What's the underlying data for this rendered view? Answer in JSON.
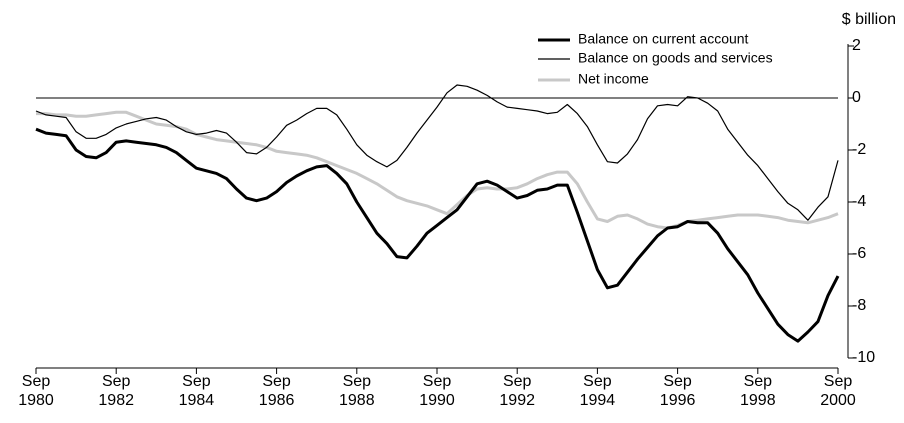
{
  "chart_data": {
    "type": "line",
    "y_axis_label": "$ billion",
    "categories": [
      "Sep 1980",
      null,
      null,
      null,
      null,
      null,
      null,
      null,
      "Sep 1982",
      null,
      null,
      null,
      null,
      null,
      null,
      null,
      "Sep 1984",
      null,
      null,
      null,
      null,
      null,
      null,
      null,
      "Sep 1986",
      null,
      null,
      null,
      null,
      null,
      null,
      null,
      "Sep 1988",
      null,
      null,
      null,
      null,
      null,
      null,
      null,
      "Sep 1990",
      null,
      null,
      null,
      null,
      null,
      null,
      null,
      "Sep 1992",
      null,
      null,
      null,
      null,
      null,
      null,
      null,
      "Sep 1994",
      null,
      null,
      null,
      null,
      null,
      null,
      null,
      "Sep 1996",
      null,
      null,
      null,
      null,
      null,
      null,
      null,
      "Sep 1998",
      null,
      null,
      null,
      null,
      null,
      null,
      null,
      "Sep 2000"
    ],
    "series": [
      {
        "name": "Balance on current account",
        "color": "#000000",
        "line_width": 3,
        "values": [
          -1.2,
          -1.35,
          -1.4,
          -1.45,
          -2.0,
          -2.25,
          -2.3,
          -2.1,
          -1.7,
          -1.65,
          -1.7,
          -1.75,
          -1.8,
          -1.9,
          -2.1,
          -2.4,
          -2.7,
          -2.8,
          -2.9,
          -3.1,
          -3.5,
          -3.85,
          -3.95,
          -3.85,
          -3.6,
          -3.25,
          -3.0,
          -2.8,
          -2.65,
          -2.6,
          -2.9,
          -3.3,
          -4.0,
          -4.6,
          -5.2,
          -5.6,
          -6.1,
          -6.15,
          -5.7,
          -5.2,
          -4.9,
          -4.6,
          -4.3,
          -3.8,
          -3.3,
          -3.2,
          -3.35,
          -3.6,
          -3.85,
          -3.75,
          -3.55,
          -3.5,
          -3.35,
          -3.35,
          -4.4,
          -5.5,
          -6.6,
          -7.3,
          -7.2,
          -6.7,
          -6.2,
          -5.75,
          -5.3,
          -5.0,
          -4.95,
          -4.75,
          -4.8,
          -4.8,
          -5.2,
          -5.8,
          -6.3,
          -6.8,
          -7.5,
          -8.1,
          -8.7,
          -9.1,
          -9.35,
          -9.0,
          -8.6,
          -7.6,
          -6.85
        ]
      },
      {
        "name": "Balance on goods and services",
        "color": "#000000",
        "line_width": 1.2,
        "values": [
          -0.5,
          -0.65,
          -0.7,
          -0.75,
          -1.3,
          -1.55,
          -1.55,
          -1.4,
          -1.15,
          -1.0,
          -0.9,
          -0.8,
          -0.75,
          -0.85,
          -1.1,
          -1.3,
          -1.4,
          -1.35,
          -1.25,
          -1.35,
          -1.7,
          -2.1,
          -2.15,
          -1.9,
          -1.5,
          -1.05,
          -0.85,
          -0.6,
          -0.4,
          -0.4,
          -0.65,
          -1.2,
          -1.8,
          -2.2,
          -2.45,
          -2.65,
          -2.4,
          -1.9,
          -1.35,
          -0.85,
          -0.35,
          0.2,
          0.5,
          0.45,
          0.3,
          0.1,
          -0.15,
          -0.35,
          -0.4,
          -0.45,
          -0.5,
          -0.6,
          -0.55,
          -0.25,
          -0.6,
          -1.1,
          -1.8,
          -2.45,
          -2.5,
          -2.15,
          -1.6,
          -0.8,
          -0.3,
          -0.25,
          -0.3,
          0.05,
          0.0,
          -0.2,
          -0.5,
          -1.2,
          -1.7,
          -2.2,
          -2.6,
          -3.1,
          -3.6,
          -4.05,
          -4.3,
          -4.7,
          -4.2,
          -3.8,
          -2.4
        ]
      },
      {
        "name": "Net income",
        "color": "#c8c8c8",
        "line_width": 3,
        "values": [
          -0.6,
          -0.6,
          -0.65,
          -0.65,
          -0.7,
          -0.7,
          -0.65,
          -0.6,
          -0.55,
          -0.55,
          -0.7,
          -0.85,
          -1.0,
          -1.05,
          -1.1,
          -1.2,
          -1.4,
          -1.5,
          -1.6,
          -1.65,
          -1.7,
          -1.75,
          -1.8,
          -1.9,
          -2.05,
          -2.1,
          -2.15,
          -2.2,
          -2.3,
          -2.45,
          -2.6,
          -2.75,
          -2.9,
          -3.1,
          -3.3,
          -3.55,
          -3.8,
          -3.95,
          -4.05,
          -4.15,
          -4.3,
          -4.45,
          -4.1,
          -3.75,
          -3.5,
          -3.45,
          -3.5,
          -3.5,
          -3.45,
          -3.3,
          -3.1,
          -2.95,
          -2.85,
          -2.85,
          -3.3,
          -4.0,
          -4.65,
          -4.75,
          -4.55,
          -4.5,
          -4.65,
          -4.85,
          -4.95,
          -5.0,
          -4.9,
          -4.75,
          -4.7,
          -4.65,
          -4.6,
          -4.55,
          -4.5,
          -4.5,
          -4.5,
          -4.55,
          -4.6,
          -4.7,
          -4.75,
          -4.8,
          -4.7,
          -4.6,
          -4.45
        ]
      }
    ],
    "ylim": [
      -10,
      2
    ],
    "yticks": [
      -10,
      -8,
      -6,
      -4,
      -2,
      0,
      2
    ],
    "y_axis_side": "right",
    "zero_line": true,
    "legend": "top"
  }
}
